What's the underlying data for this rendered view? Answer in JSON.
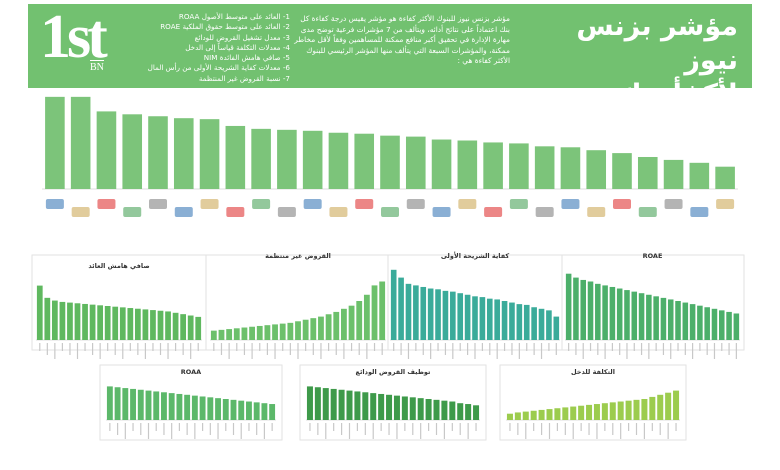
{
  "header": {
    "logo_main": "1st",
    "logo_sub": "BN",
    "title_line1": "مؤشر بزنس نيوز",
    "title_line2": "لأكفأ بنك",
    "description": "مؤشر بزنس نيوز للبنوك الأكثر كفاءة هو مؤشر يقيس درجة كفاءة كل بنك اعتماداً على نتائج أدائه، ويتألف من 7 مؤشرات فرعية توضح مدى مهارة الإدارة في تحقيق أكبر منافع ممكنة للمساهمين وفقاً لأقل مخاطر ممكنة، والمؤشرات السبعة التي يتألف منها المؤشر الرئيسي للبنوك الأكثر كفاءة هي :",
    "criteria": [
      "1- العائد على متوسط الأصول ROAA",
      "2- العائد على متوسط حقوق الملكية ROAE",
      "3- معدل تشغيل القروض للودائع",
      "4- معدلات التكلفة قياساً إلى الدخل",
      "5- صافي هامش الفائدة NIM",
      "6- معدلات كفاية الشريحة الأولى من رأس المال",
      "7- نسبة القروض غير المنتظمة"
    ]
  },
  "chart_data": [
    {
      "type": "bar",
      "color": "#7cc47a",
      "ylim": [
        0,
        100
      ],
      "values": [
        95,
        95,
        80,
        77,
        75,
        73,
        72,
        65,
        62,
        61,
        60,
        58,
        57,
        55,
        54,
        51,
        50,
        48,
        47,
        44,
        43,
        40,
        37,
        33,
        30,
        27,
        23
      ]
    },
    {
      "type": "bar",
      "title": "صافي هامش العائد",
      "color": "#5fb85f",
      "ylim": [
        0,
        100
      ],
      "values": [
        80,
        62,
        58,
        56,
        55,
        54,
        53,
        52,
        51,
        50,
        49,
        48,
        47,
        46,
        45,
        44,
        43,
        42,
        40,
        38,
        36,
        34
      ]
    },
    {
      "type": "bar",
      "title": "القروض غير منتظمة",
      "color": "#6cc06b",
      "ylim": [
        0,
        100
      ],
      "values": [
        12,
        13,
        14,
        15,
        16,
        17,
        18,
        19,
        20,
        21,
        22,
        24,
        26,
        28,
        30,
        33,
        36,
        40,
        44,
        50,
        58,
        70,
        75
      ]
    },
    {
      "type": "bar",
      "title": "كفاية الشريحة الأولى",
      "color": "#3aab9a",
      "ylim": [
        0,
        100
      ],
      "values": [
        90,
        80,
        72,
        70,
        68,
        66,
        65,
        63,
        62,
        60,
        58,
        56,
        55,
        53,
        52,
        50,
        48,
        46,
        45,
        42,
        40,
        38,
        30
      ]
    },
    {
      "type": "bar",
      "title": "ROAE",
      "color": "#4caf6a",
      "ylim": [
        0,
        100
      ],
      "values": [
        85,
        80,
        77,
        75,
        72,
        70,
        68,
        66,
        64,
        62,
        60,
        58,
        56,
        54,
        52,
        50,
        48,
        46,
        44,
        42,
        40,
        38,
        36,
        34
      ]
    },
    {
      "type": "bar",
      "title": "ROAA",
      "color": "#5cb86a",
      "ylim": [
        0,
        100
      ],
      "values": [
        80,
        78,
        76,
        74,
        72,
        70,
        68,
        66,
        64,
        62,
        60,
        58,
        56,
        54,
        52,
        50,
        48,
        46,
        44,
        42,
        40,
        38
      ]
    },
    {
      "type": "bar",
      "title": "توظيف القروض الودائع",
      "color": "#3e9a4a",
      "ylim": [
        0,
        100
      ],
      "values": [
        80,
        78,
        76,
        74,
        72,
        70,
        68,
        66,
        64,
        62,
        60,
        58,
        56,
        54,
        52,
        50,
        48,
        46,
        44,
        40,
        38,
        35
      ]
    },
    {
      "type": "bar",
      "title": "التكلفة للدخل",
      "color": "#9ccc4e",
      "ylim": [
        0,
        100
      ],
      "values": [
        15,
        18,
        20,
        22,
        24,
        26,
        28,
        30,
        32,
        34,
        36,
        38,
        40,
        42,
        44,
        46,
        48,
        50,
        55,
        60,
        65,
        70
      ]
    }
  ]
}
